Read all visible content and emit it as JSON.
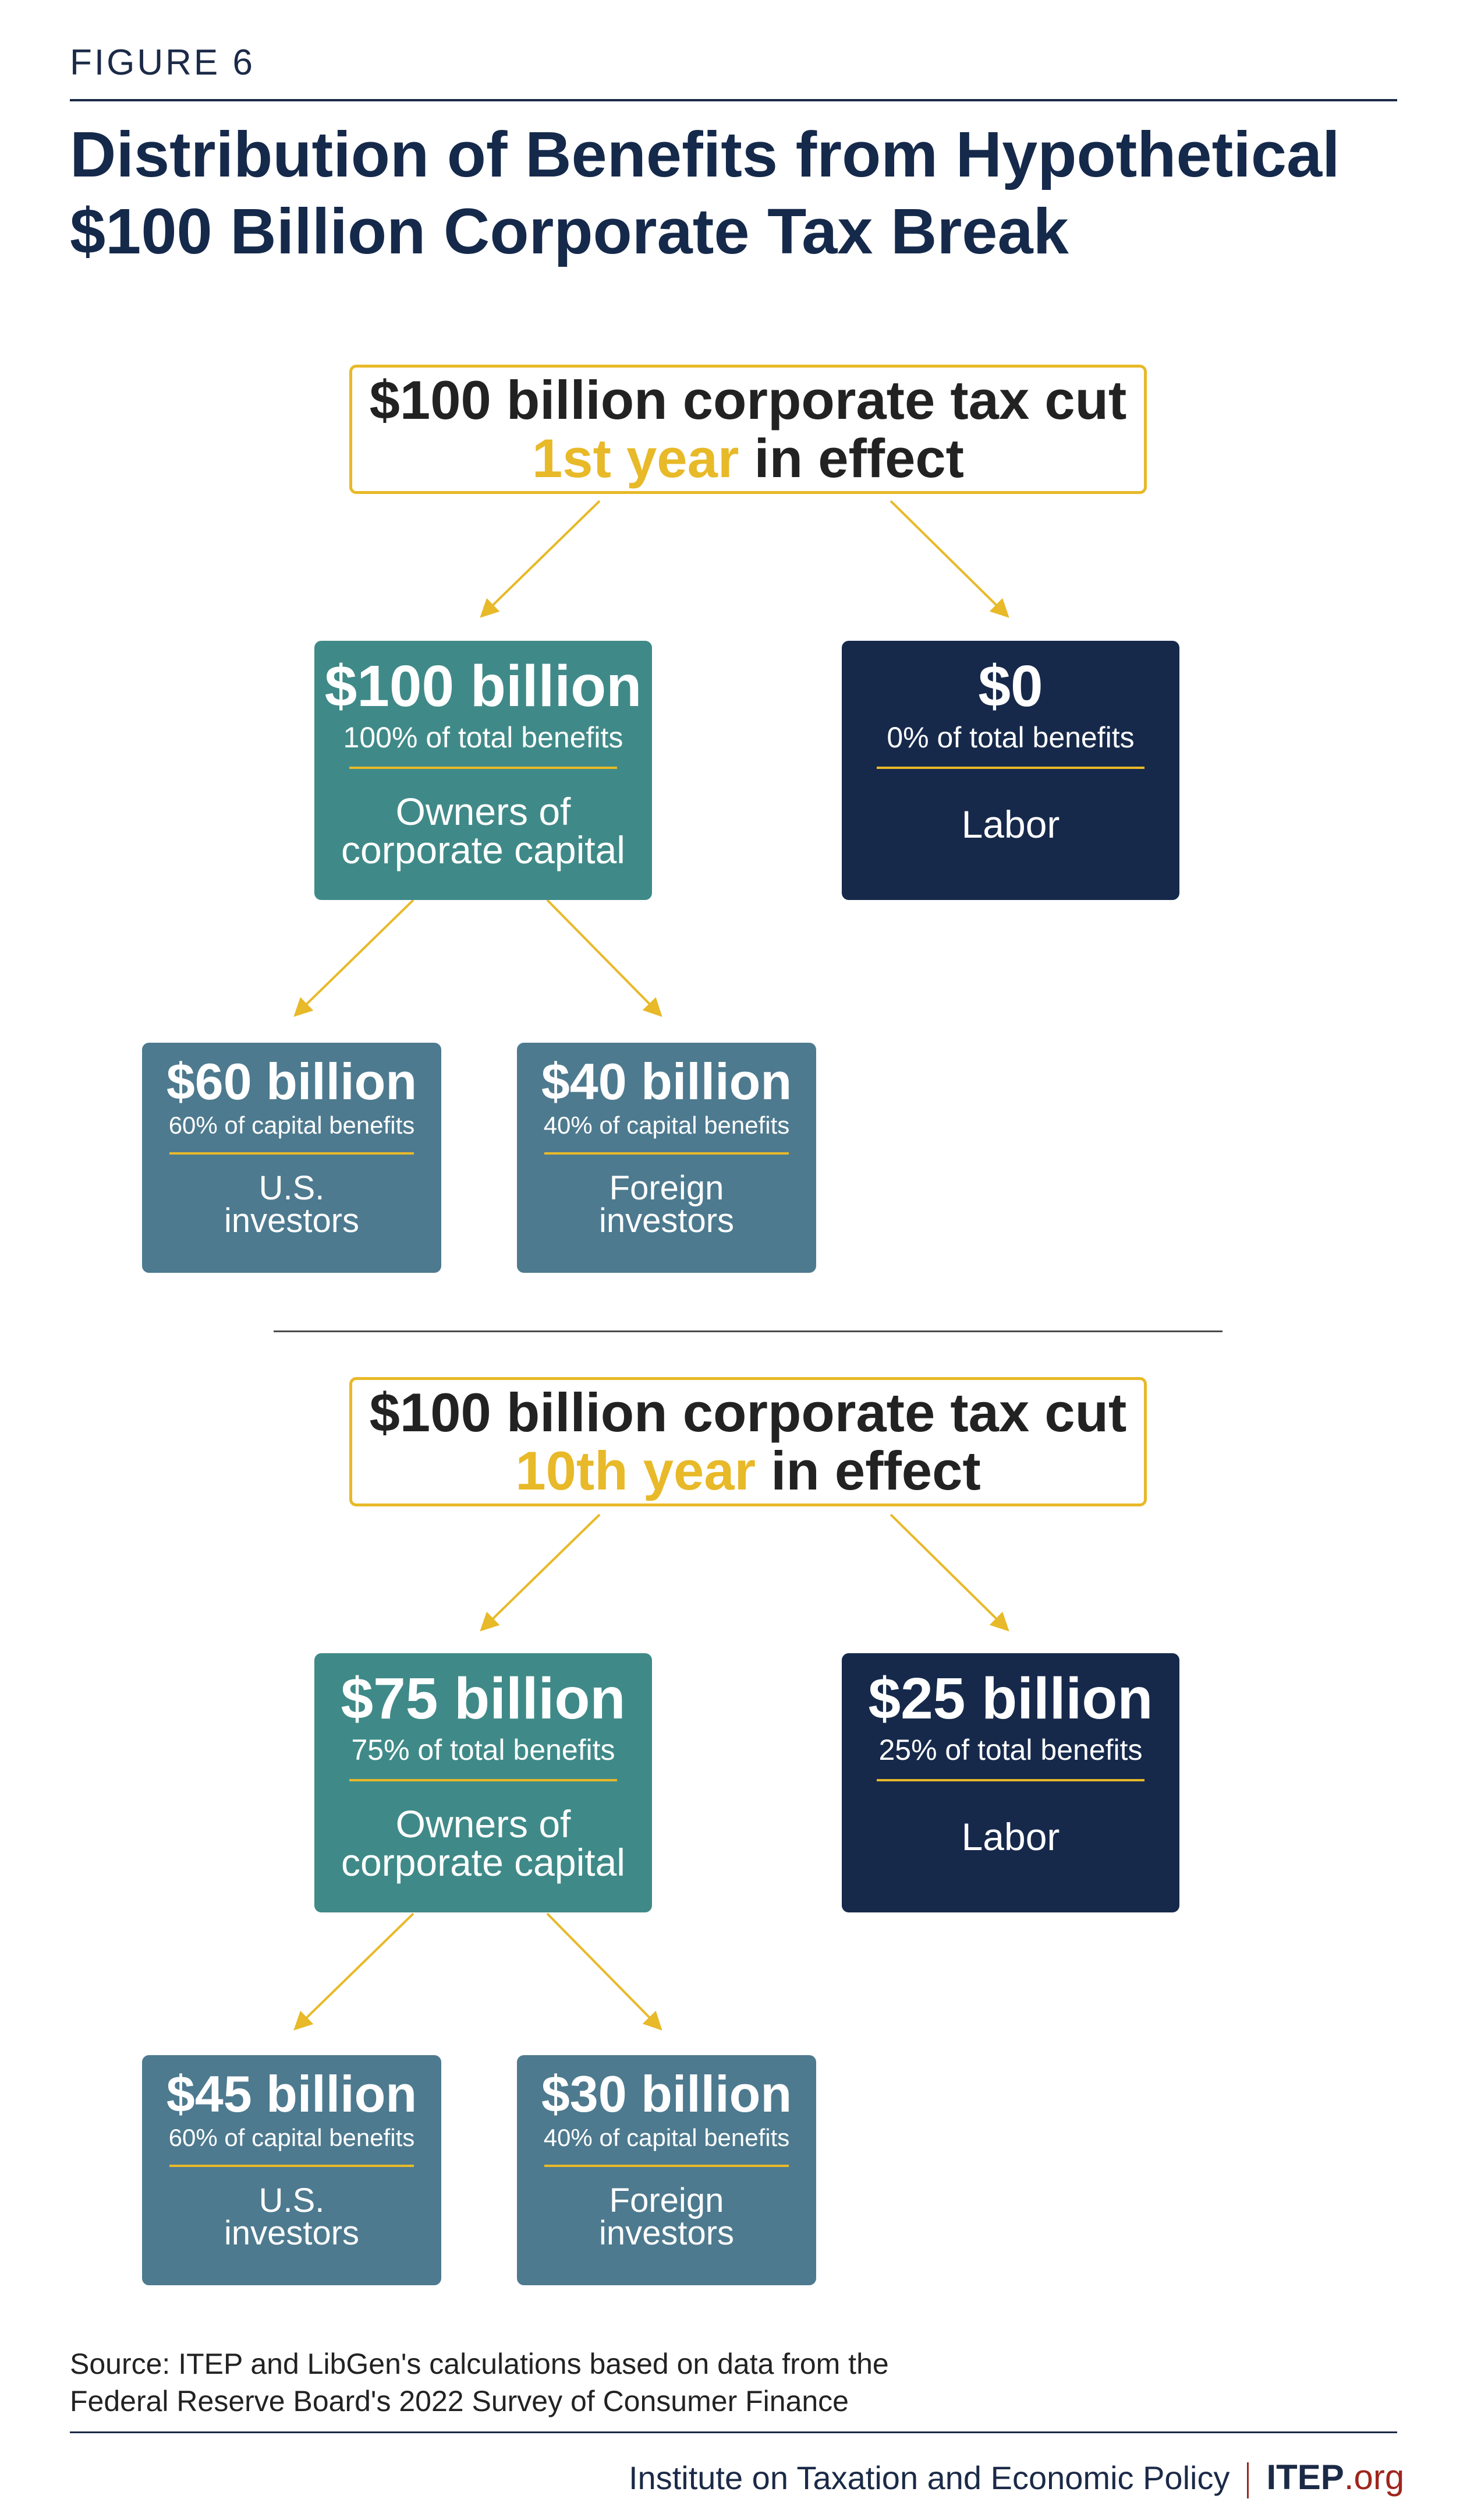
{
  "figure_label": "FIGURE 6",
  "title_line1": "Distribution of Benefits from Hypothetical",
  "title_line2": "$100 Billion Corporate Tax Break",
  "colors": {
    "navy": "#16294b",
    "teal": "#3f8a88",
    "slate": "#4d7a8f",
    "gold": "#e8b928",
    "footer_red": "#a0251c"
  },
  "scenarios": [
    {
      "header_line1": "$100 billion corporate tax cut",
      "header_highlight": "1st year",
      "header_rest": " in effect",
      "owners": {
        "amount": "$100 billion",
        "pct": "100% of total benefits",
        "label_line1": "Owners of",
        "label_line2": "corporate capital"
      },
      "labor": {
        "amount": "$0",
        "pct": "0% of total benefits",
        "label": "Labor"
      },
      "us": {
        "amount": "$60 billion",
        "pct": "60% of capital benefits",
        "label_line1": "U.S.",
        "label_line2": "investors"
      },
      "foreign": {
        "amount": "$40 billion",
        "pct": "40% of capital benefits",
        "label_line1": "Foreign",
        "label_line2": "investors"
      }
    },
    {
      "header_line1": "$100 billion corporate tax cut",
      "header_highlight": "10th year",
      "header_rest": " in effect",
      "owners": {
        "amount": "$75 billion",
        "pct": "75% of total benefits",
        "label_line1": "Owners of",
        "label_line2": "corporate capital"
      },
      "labor": {
        "amount": "$25 billion",
        "pct": "25% of total benefits",
        "label": "Labor"
      },
      "us": {
        "amount": "$45 billion",
        "pct": "60% of capital benefits",
        "label_line1": "U.S.",
        "label_line2": "investors"
      },
      "foreign": {
        "amount": "$30 billion",
        "pct": "40% of capital benefits",
        "label_line1": "Foreign",
        "label_line2": "investors"
      }
    }
  ],
  "source_line1": "Source: ITEP and LibGen's calculations based on data from the",
  "source_line2": "Federal Reserve Board's 2022 Survey of Consumer Finance",
  "footer_org": "Institute on Taxation and Economic Policy",
  "footer_brand": "ITEP",
  "footer_tld": ".org"
}
